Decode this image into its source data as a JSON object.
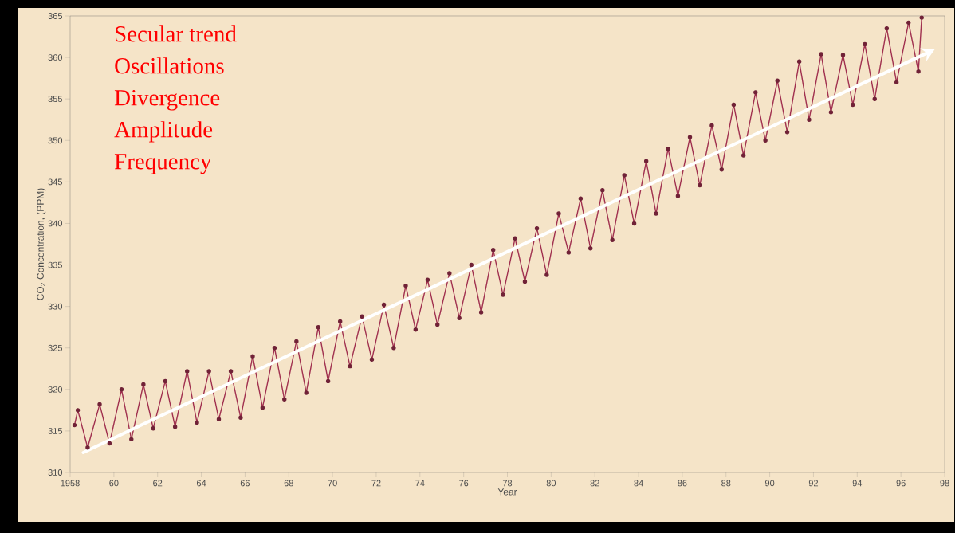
{
  "chart_data": {
    "type": "line",
    "xlabel": "Year",
    "ylabel": "CO$_{2}$ Concentration, (PPM)",
    "xlim": [
      1958,
      1998
    ],
    "ylim": [
      310,
      365
    ],
    "xticks": [
      {
        "value": 1958,
        "label": "1958"
      },
      {
        "value": 1960,
        "label": "60"
      },
      {
        "value": 1962,
        "label": "62"
      },
      {
        "value": 1964,
        "label": "64"
      },
      {
        "value": 1966,
        "label": "66"
      },
      {
        "value": 1968,
        "label": "68"
      },
      {
        "value": 1970,
        "label": "70"
      },
      {
        "value": 1972,
        "label": "72"
      },
      {
        "value": 1974,
        "label": "74"
      },
      {
        "value": 1976,
        "label": "76"
      },
      {
        "value": 1978,
        "label": "78"
      },
      {
        "value": 1980,
        "label": "80"
      },
      {
        "value": 1982,
        "label": "82"
      },
      {
        "value": 1984,
        "label": "84"
      },
      {
        "value": 1986,
        "label": "86"
      },
      {
        "value": 1988,
        "label": "88"
      },
      {
        "value": 1990,
        "label": "90"
      },
      {
        "value": 1992,
        "label": "92"
      },
      {
        "value": 1994,
        "label": "94"
      },
      {
        "value": 1996,
        "label": "96"
      },
      {
        "value": 1998,
        "label": "98"
      }
    ],
    "yticks": [
      310,
      315,
      320,
      325,
      330,
      335,
      340,
      345,
      350,
      355,
      360,
      365
    ],
    "annotations": [
      "Secular trend",
      "Oscillations",
      "Divergence",
      "Amplitude",
      "Frequency"
    ],
    "series": [
      {
        "color": "#a0304f",
        "marker": "circle",
        "line_style": "solid",
        "x": [
          1958.2,
          1958.35,
          1958.8,
          1959.35,
          1959.8,
          1960.35,
          1960.8,
          1961.35,
          1961.8,
          1962.35,
          1962.8,
          1963.35,
          1963.8,
          1964.35,
          1964.8,
          1965.35,
          1965.8,
          1966.35,
          1966.8,
          1967.35,
          1967.8,
          1968.35,
          1968.8,
          1969.35,
          1969.8,
          1970.35,
          1970.8,
          1971.35,
          1971.8,
          1972.35,
          1972.8,
          1973.35,
          1973.8,
          1974.35,
          1974.8,
          1975.35,
          1975.8,
          1976.35,
          1976.8,
          1977.35,
          1977.8,
          1978.35,
          1978.8,
          1979.35,
          1979.8,
          1980.35,
          1980.8,
          1981.35,
          1981.8,
          1982.35,
          1982.8,
          1983.35,
          1983.8,
          1984.35,
          1984.8,
          1985.35,
          1985.8,
          1986.35,
          1986.8,
          1987.35,
          1987.8,
          1988.35,
          1988.8,
          1989.35,
          1989.8,
          1990.35,
          1990.8,
          1991.35,
          1991.8,
          1992.35,
          1992.8,
          1993.35,
          1993.8,
          1994.35,
          1994.8,
          1995.35,
          1995.8,
          1996.35,
          1996.8,
          1996.95
        ],
        "values": [
          315.7,
          317.5,
          313,
          318.2,
          313.5,
          320,
          314,
          320.6,
          315.3,
          321,
          315.5,
          322.2,
          316,
          322.2,
          316.4,
          322.2,
          316.6,
          324,
          317.8,
          325,
          318.8,
          325.8,
          319.6,
          327.5,
          321,
          328.2,
          322.8,
          328.8,
          323.6,
          330.2,
          325,
          332.5,
          327.2,
          333.2,
          327.8,
          334,
          328.6,
          335,
          329.3,
          336.8,
          331.4,
          338.2,
          333,
          339.4,
          333.8,
          341.2,
          336.5,
          343,
          337,
          344,
          338,
          345.8,
          340,
          347.5,
          341.2,
          349,
          343.3,
          350.4,
          344.6,
          351.8,
          346.5,
          354.3,
          348.2,
          355.8,
          350,
          357.2,
          351,
          359.5,
          352.5,
          360.4,
          353.4,
          360.3,
          354.3,
          361.6,
          355,
          363.5,
          357,
          364.2,
          358.3,
          364.8
        ]
      },
      {
        "color": "#ffffff",
        "marker": "none",
        "line_style": "solid",
        "x": [
          1958.6,
          1996.6
        ],
        "values": [
          312.4,
          359.8
        ]
      }
    ]
  }
}
